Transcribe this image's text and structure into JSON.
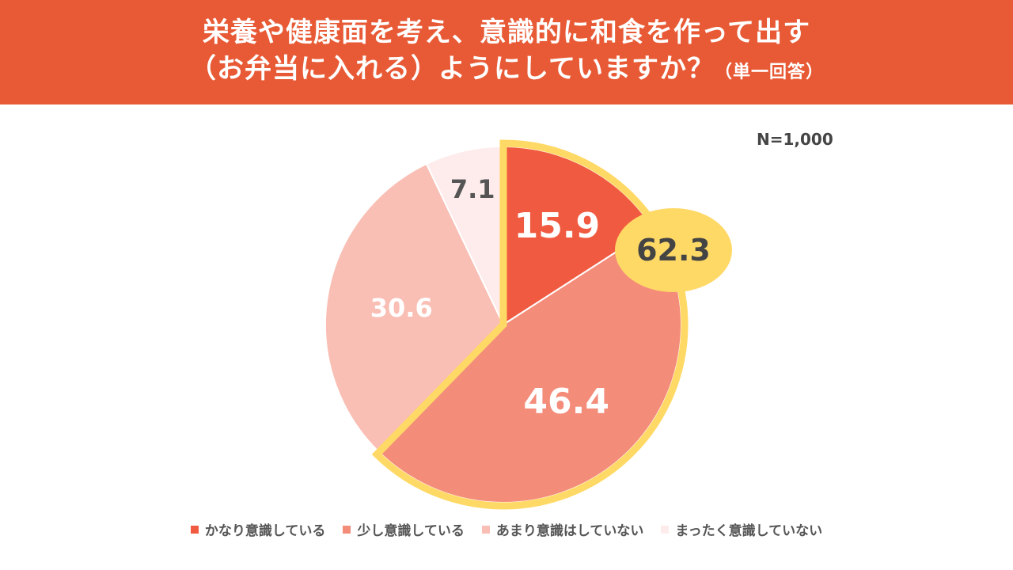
{
  "header": {
    "title_line1": "栄養や健康面を考え、意識的に和食を作って出す",
    "title_line2": "（お弁当に入れる）ようにしていますか？",
    "title_note": "（単一回答）"
  },
  "sample_label": "N=1,000",
  "chart_data": {
    "type": "pie",
    "categories": [
      "かなり意識している",
      "少し意識している",
      "あまり意識はしていない",
      "まったく意識していない"
    ],
    "values": [
      15.9,
      46.4,
      30.6,
      7.1
    ],
    "colors": [
      "#f05a40",
      "#f48c7a",
      "#f9beb4",
      "#fdeceb"
    ],
    "highlight": {
      "categories": [
        "かなり意識している",
        "少し意識している"
      ],
      "total": "62.3",
      "color": "#ffd966"
    },
    "legend_position": "bottom"
  }
}
